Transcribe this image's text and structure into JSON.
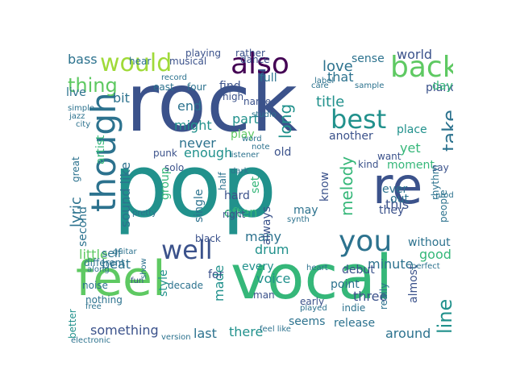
{
  "palette": [
    "#3b528b",
    "#21918c",
    "#5ec962",
    "#440154",
    "#2c728e",
    "#35b779",
    "#a0da39"
  ],
  "words": [
    {
      "t": "rock",
      "c": "#3b528b"
    },
    {
      "t": "pop",
      "c": "#21918c"
    },
    {
      "t": "feel",
      "c": "#5ec962"
    },
    {
      "t": "vocal",
      "c": "#35b779"
    },
    {
      "t": "would",
      "c": "#a0da39"
    },
    {
      "t": "also",
      "c": "#440154"
    },
    {
      "t": "back",
      "c": "#5ec962"
    },
    {
      "t": "though",
      "c": "#2c728e"
    },
    {
      "t": "re",
      "c": "#3b528b"
    },
    {
      "t": "you",
      "c": "#2c728e"
    },
    {
      "t": "well",
      "c": "#3b528b"
    },
    {
      "t": "best",
      "c": "#21918c"
    },
    {
      "t": "thing",
      "c": "#5ec962"
    },
    {
      "t": "take",
      "c": "#2c728e"
    },
    {
      "t": "line",
      "c": "#21918c"
    },
    {
      "t": "lyric",
      "c": "#2c728e"
    },
    {
      "t": "might",
      "c": "#21918c"
    },
    {
      "t": "love",
      "c": "#2c728e"
    },
    {
      "t": "world",
      "c": "#3b528b"
    },
    {
      "t": "long",
      "c": "#21918c"
    },
    {
      "t": "title",
      "c": "#21918c"
    },
    {
      "t": "melody",
      "c": "#35b779"
    },
    {
      "t": "voice",
      "c": "#21918c"
    },
    {
      "t": "drum",
      "c": "#21918c"
    },
    {
      "t": "many",
      "c": "#2c728e"
    },
    {
      "t": "beat",
      "c": "#2c728e"
    },
    {
      "t": "made",
      "c": "#21918c"
    },
    {
      "t": "little",
      "c": "#5ec962"
    },
    {
      "t": "something",
      "c": "#3b528b"
    },
    {
      "t": "last",
      "c": "#2c728e"
    },
    {
      "t": "there",
      "c": "#21918c"
    },
    {
      "t": "around",
      "c": "#2c728e"
    },
    {
      "t": "minute",
      "c": "#2c728e"
    },
    {
      "t": "good",
      "c": "#35b779"
    },
    {
      "t": "three",
      "c": "#3b528b"
    },
    {
      "t": "this",
      "c": "#3b528b"
    },
    {
      "t": "never",
      "c": "#2c728e"
    },
    {
      "t": "enough",
      "c": "#21918c"
    },
    {
      "t": "sound like",
      "c": "#2c728e"
    },
    {
      "t": "group",
      "c": "#35b779"
    },
    {
      "t": "single",
      "c": "#2c728e"
    },
    {
      "t": "often",
      "c": "#35b779"
    },
    {
      "t": "hard",
      "c": "#3b528b"
    },
    {
      "t": "always",
      "c": "#3b528b"
    },
    {
      "t": "part",
      "c": "#21918c"
    },
    {
      "t": "play",
      "c": "#5ec962"
    },
    {
      "t": "end",
      "c": "#2c728e"
    },
    {
      "t": "bit",
      "c": "#2c728e"
    },
    {
      "t": "bass",
      "c": "#2c728e"
    },
    {
      "t": "live",
      "c": "#2c728e"
    },
    {
      "t": "that",
      "c": "#2c728e"
    },
    {
      "t": "ever",
      "c": "#2c728e"
    },
    {
      "t": "out",
      "c": "#2c728e"
    },
    {
      "t": "they",
      "c": "#3b528b"
    },
    {
      "t": "another",
      "c": "#3b528b"
    },
    {
      "t": "kind",
      "c": "#3b528b"
    },
    {
      "t": "moment",
      "c": "#35b779"
    },
    {
      "t": "yet",
      "c": "#35b779"
    },
    {
      "t": "say",
      "c": "#3b528b"
    },
    {
      "t": "without",
      "c": "#2c728e"
    },
    {
      "t": "people",
      "c": "#2c728e"
    },
    {
      "t": "rhythm",
      "c": "#2c728e"
    },
    {
      "t": "almost",
      "c": "#3b528b"
    },
    {
      "t": "release",
      "c": "#2c728e"
    },
    {
      "t": "seems",
      "c": "#2c728e"
    },
    {
      "t": "point",
      "c": "#2c728e"
    },
    {
      "t": "debut",
      "c": "#3b528b"
    },
    {
      "t": "early",
      "c": "#3b528b"
    },
    {
      "t": "indie",
      "c": "#2c728e"
    },
    {
      "t": "for",
      "c": "#3b528b"
    },
    {
      "t": "every",
      "c": "#21918c"
    },
    {
      "t": "old",
      "c": "#3b528b"
    },
    {
      "t": "set",
      "c": "#35b779"
    },
    {
      "t": "know",
      "c": "#3b528b"
    },
    {
      "t": "may",
      "c": "#2c728e"
    },
    {
      "t": "second",
      "c": "#2c728e"
    },
    {
      "t": "self",
      "c": "#2c728e"
    },
    {
      "t": "style",
      "c": "#21918c"
    },
    {
      "t": "better",
      "c": "#21918c"
    },
    {
      "t": "artist",
      "c": "#35b779"
    },
    {
      "t": "full",
      "c": "#2c728e"
    },
    {
      "t": "sense",
      "c": "#2c728e"
    },
    {
      "t": "piano",
      "c": "#3b528b"
    },
    {
      "t": "day",
      "c": "#35b779"
    },
    {
      "t": "place",
      "c": "#21918c"
    },
    {
      "t": "find",
      "c": "#3b528b"
    },
    {
      "t": "four",
      "c": "#2c728e"
    },
    {
      "t": "east",
      "c": "#2c728e"
    },
    {
      "t": "rather",
      "c": "#3b528b"
    },
    {
      "t": "playing",
      "c": "#3b528b"
    },
    {
      "t": "hear",
      "c": "#2c728e"
    },
    {
      "t": "musical",
      "c": "#3b528b"
    },
    {
      "t": "name",
      "c": "#3b528b"
    },
    {
      "t": "studio",
      "c": "#2c728e"
    },
    {
      "t": "punk",
      "c": "#3b528b"
    },
    {
      "t": "solo",
      "c": "#3b528b"
    },
    {
      "t": "black",
      "c": "#3b528b"
    },
    {
      "t": "man",
      "c": "#3b528b"
    },
    {
      "t": "noise",
      "c": "#2c728e"
    },
    {
      "t": "decade",
      "c": "#2c728e"
    },
    {
      "t": "nothing",
      "c": "#2c728e"
    },
    {
      "t": "really",
      "c": "#2c728e"
    },
    {
      "t": "production",
      "c": "#2c728e"
    },
    {
      "t": "fun",
      "c": "#3b528b"
    },
    {
      "t": "half",
      "c": "#2c728e"
    },
    {
      "t": "right",
      "c": "#3b528b"
    },
    {
      "t": "different",
      "c": "#2c728e"
    },
    {
      "t": "great",
      "c": "#2c728e"
    },
    {
      "t": "want",
      "c": "#3b528b"
    },
    {
      "t": "dance",
      "c": "#3b528b"
    },
    {
      "t": "word",
      "c": "#2c728e"
    },
    {
      "t": "high",
      "c": "#3b528b"
    },
    {
      "t": "sample",
      "c": "#2c728e"
    },
    {
      "t": "simple",
      "c": "#2c728e"
    },
    {
      "t": "version",
      "c": "#2c728e"
    },
    {
      "t": "electronic",
      "c": "#2c728e"
    },
    {
      "t": "feel like",
      "c": "#2c728e"
    },
    {
      "t": "played",
      "c": "#2c728e"
    },
    {
      "t": "perfect",
      "c": "#2c728e"
    },
    {
      "t": "listener",
      "c": "#2c728e"
    },
    {
      "t": "guitar",
      "c": "#2c728e"
    },
    {
      "t": "pretty",
      "c": "#2c728e"
    },
    {
      "t": "show",
      "c": "#2c728e"
    },
    {
      "t": "label",
      "c": "#2c728e"
    },
    {
      "t": "care",
      "c": "#2c728e"
    },
    {
      "t": "note",
      "c": "#2c728e"
    },
    {
      "t": "dark",
      "c": "#2c728e"
    },
    {
      "t": "synth",
      "c": "#2c728e"
    },
    {
      "t": "jazz",
      "c": "#2c728e"
    },
    {
      "t": "record",
      "c": "#2c728e"
    },
    {
      "t": "free",
      "c": "#2c728e"
    },
    {
      "t": "heart",
      "c": "#2c728e"
    },
    {
      "t": "along",
      "c": "#2c728e"
    },
    {
      "t": "city",
      "c": "#2c728e"
    }
  ]
}
